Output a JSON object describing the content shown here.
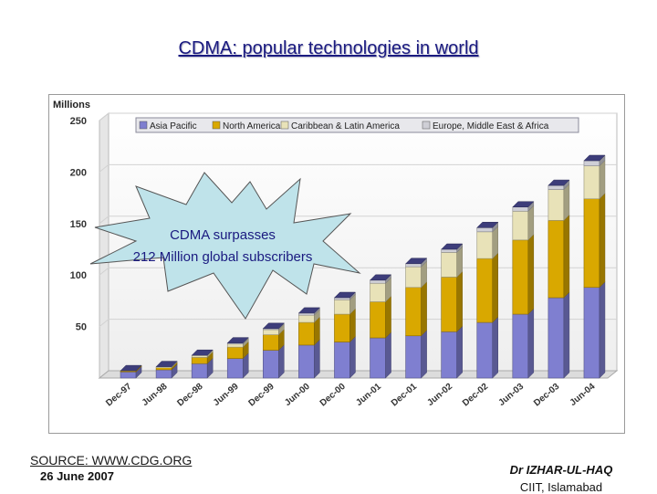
{
  "slide": {
    "title": "CDMA: popular technologies in world",
    "source": "SOURCE: WWW.CDG.ORG",
    "date": "26 June 2007",
    "author": "Dr IZHAR-UL-HAQ",
    "institution": "CIIT, Islamabad"
  },
  "callout": {
    "line1": "CDMA surpasses",
    "line2": "212 Million global subscribers",
    "fill": "#bfe3ea"
  },
  "chart_data": {
    "type": "bar",
    "stacked": true,
    "title": "",
    "ylabel": "Millions",
    "xlabel": "",
    "ylim": [
      0,
      250
    ],
    "yticks": [
      50,
      100,
      150,
      200,
      250
    ],
    "grid": true,
    "legend_position": "top",
    "categories": [
      "Dec-97",
      "Jun-98",
      "Dec-98",
      "Jun-99",
      "Dec-99",
      "Jun-00",
      "Dec-00",
      "Jun-01",
      "Dec-01",
      "Jun-02",
      "Dec-02",
      "Jun-03",
      "Dec-03",
      "Jun-04"
    ],
    "series": [
      {
        "name": "Asia Pacific",
        "color": "#7f7fd0",
        "values": [
          6,
          8,
          14,
          19,
          27,
          32,
          35,
          39,
          41,
          45,
          54,
          62,
          78,
          88
        ]
      },
      {
        "name": "North America",
        "color": "#d9a800",
        "values": [
          1,
          2,
          6,
          11,
          15,
          22,
          27,
          35,
          47,
          53,
          62,
          72,
          75,
          86
        ]
      },
      {
        "name": "Caribbean & Latin America",
        "color": "#e8e2b8",
        "values": [
          0,
          1,
          2,
          3,
          5,
          7,
          14,
          18,
          20,
          24,
          26,
          28,
          30,
          32
        ]
      },
      {
        "name": "Europe, Middle East & Africa",
        "color": "#cfcfd6",
        "values": [
          0,
          0,
          0,
          1,
          1,
          2,
          2,
          3,
          3,
          3,
          4,
          4,
          4,
          5
        ]
      }
    ]
  }
}
